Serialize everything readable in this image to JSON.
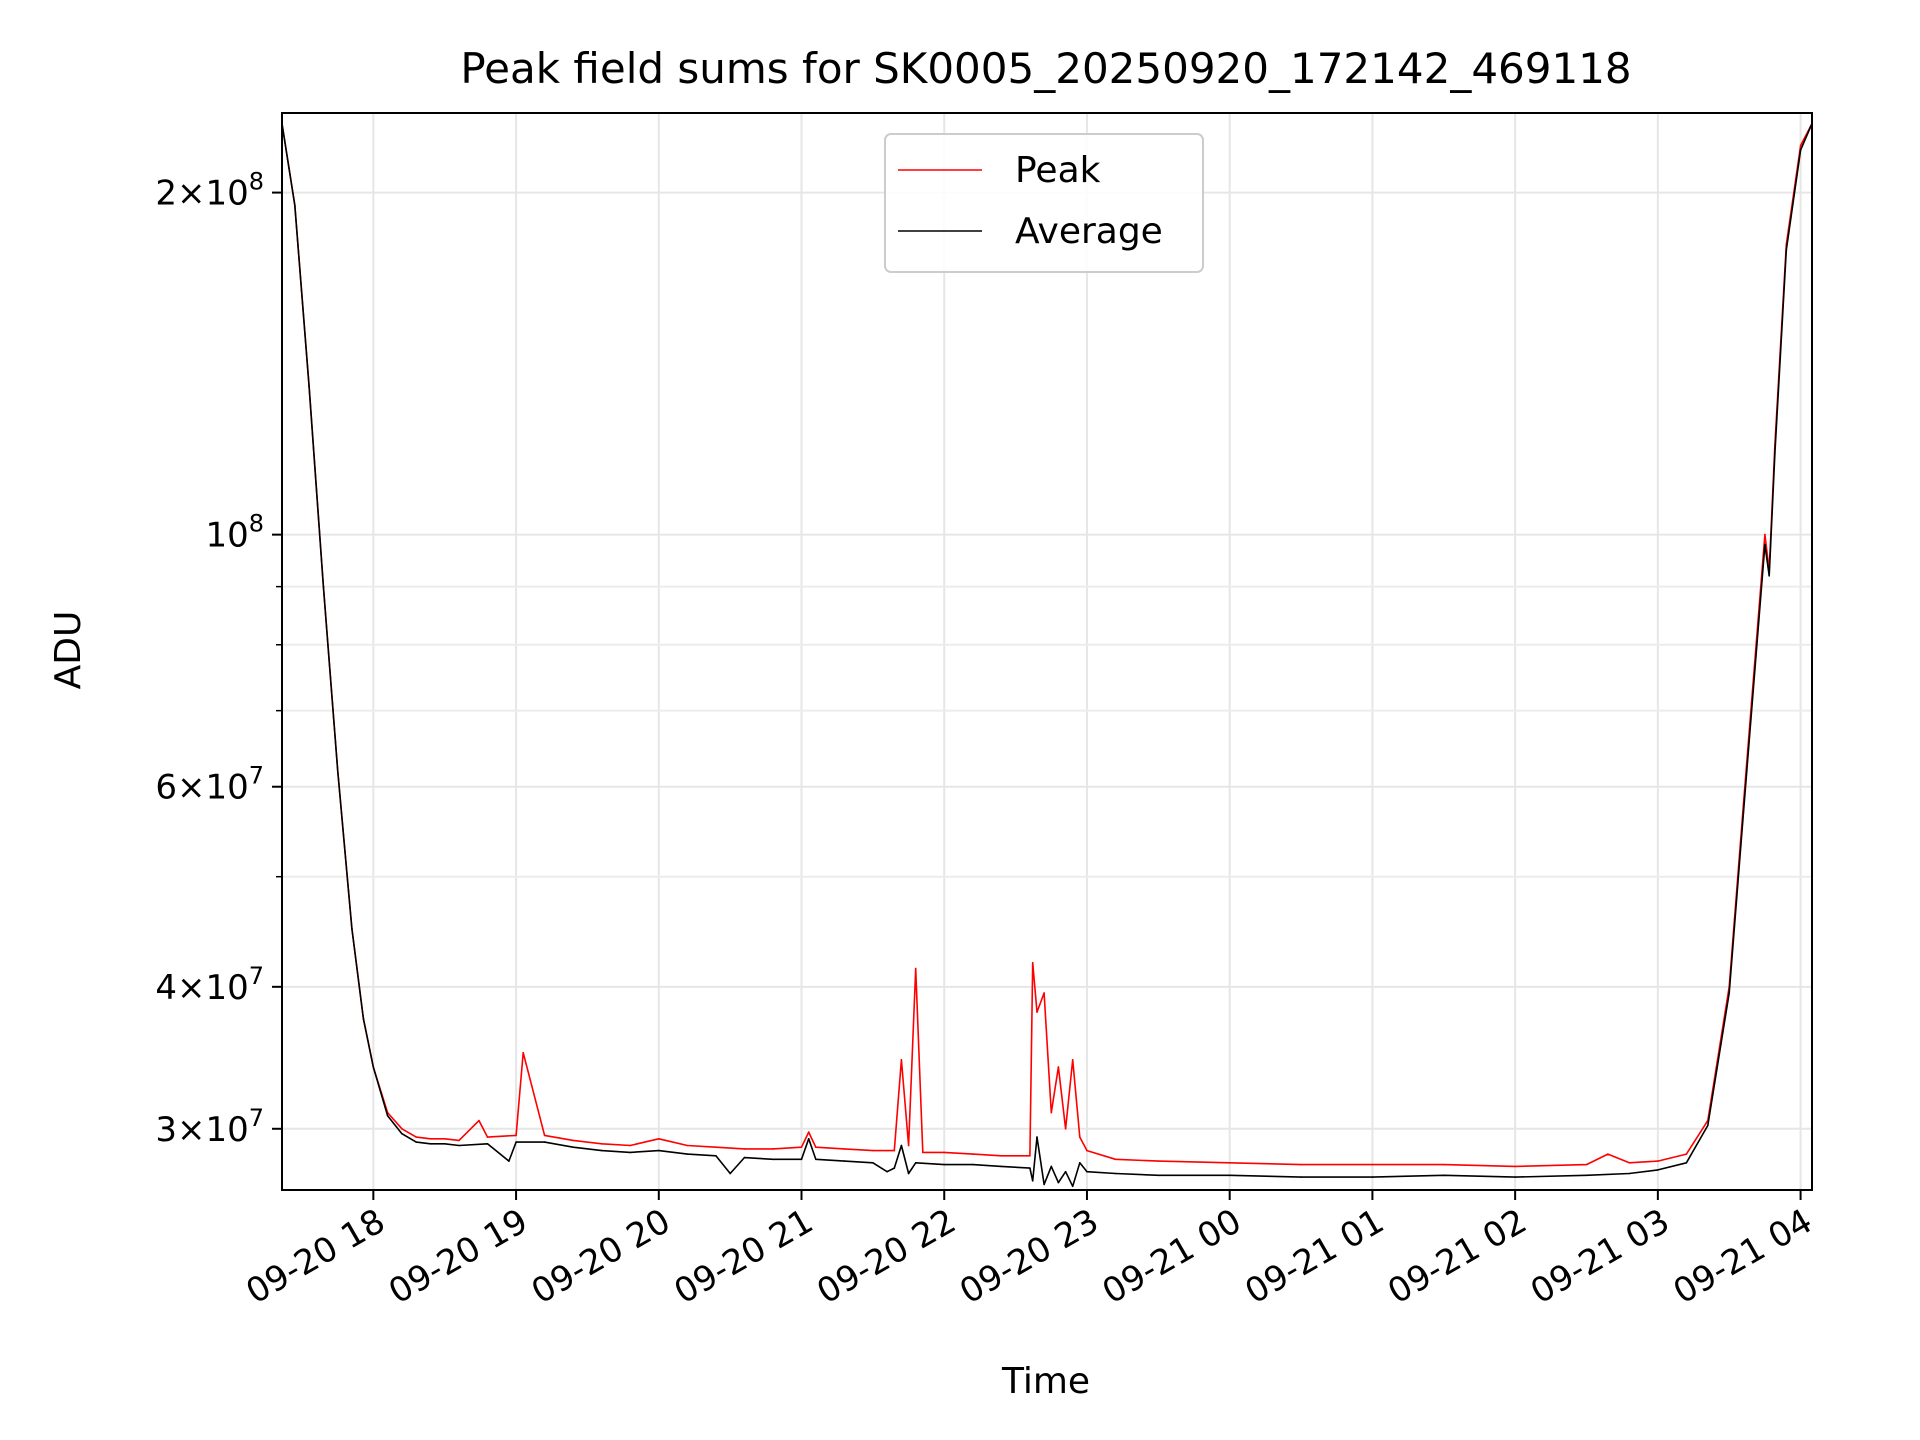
{
  "chart_data": {
    "type": "line",
    "title": "Peak field sums for SK0005_20250920_172142_469118",
    "xlabel": "Time",
    "ylabel": "ADU",
    "yscale": "log",
    "ylim": [
      26500000,
      235000000
    ],
    "xlim_hours": [
      17.36,
      28.08
    ],
    "grid": true,
    "legend_position": "upper center",
    "x_ticks": [
      {
        "hour": 18,
        "label": "09-20 18"
      },
      {
        "hour": 19,
        "label": "09-20 19"
      },
      {
        "hour": 20,
        "label": "09-20 20"
      },
      {
        "hour": 21,
        "label": "09-20 21"
      },
      {
        "hour": 22,
        "label": "09-20 22"
      },
      {
        "hour": 23,
        "label": "09-20 23"
      },
      {
        "hour": 24,
        "label": "09-21 00"
      },
      {
        "hour": 25,
        "label": "09-21 01"
      },
      {
        "hour": 26,
        "label": "09-21 02"
      },
      {
        "hour": 27,
        "label": "09-21 03"
      },
      {
        "hour": 28,
        "label": "09-21 04"
      }
    ],
    "y_ticks": [
      {
        "value": 30000000,
        "mantissa": "3",
        "exp": "7"
      },
      {
        "value": 40000000,
        "mantissa": "4",
        "exp": "7"
      },
      {
        "value": 60000000,
        "mantissa": "6",
        "exp": "7"
      },
      {
        "value": 100000000,
        "mantissa": "",
        "exp": "8"
      },
      {
        "value": 200000000,
        "mantissa": "2",
        "exp": "8"
      }
    ],
    "y_minor_ticks": [
      50000000,
      70000000,
      80000000,
      90000000
    ],
    "series": [
      {
        "name": "Peak",
        "color": "#ff0000",
        "x_hours": [
          17.36,
          17.45,
          17.55,
          17.65,
          17.75,
          17.85,
          17.93,
          18.0,
          18.1,
          18.2,
          18.3,
          18.4,
          18.5,
          18.6,
          18.74,
          18.8,
          19.0,
          19.05,
          19.2,
          19.4,
          19.6,
          19.8,
          20.0,
          20.2,
          20.4,
          20.6,
          20.8,
          21.0,
          21.05,
          21.1,
          21.3,
          21.5,
          21.65,
          21.7,
          21.75,
          21.8,
          21.85,
          22.0,
          22.2,
          22.4,
          22.6,
          22.62,
          22.65,
          22.7,
          22.75,
          22.8,
          22.85,
          22.9,
          22.95,
          23.0,
          23.2,
          23.5,
          24.0,
          24.5,
          25.0,
          25.5,
          26.0,
          26.5,
          26.65,
          26.8,
          27.0,
          27.2,
          27.35,
          27.5,
          27.6,
          27.75,
          27.78,
          27.82,
          27.9,
          28.0,
          28.08
        ],
        "y": [
          230000000,
          195000000,
          135000000,
          90000000,
          62000000,
          45000000,
          37500000,
          34000000,
          31000000,
          30000000,
          29500000,
          29400000,
          29400000,
          29300000,
          30500000,
          29500000,
          29600000,
          35000000,
          29600000,
          29300000,
          29100000,
          29000000,
          29400000,
          29000000,
          28900000,
          28800000,
          28800000,
          28900000,
          29800000,
          28900000,
          28800000,
          28700000,
          28700000,
          34500000,
          29000000,
          41500000,
          28600000,
          28600000,
          28500000,
          28400000,
          28400000,
          42000000,
          38000000,
          39500000,
          31000000,
          34000000,
          30000000,
          34500000,
          29500000,
          28700000,
          28200000,
          28100000,
          28000000,
          27900000,
          27900000,
          27900000,
          27800000,
          27900000,
          28500000,
          28000000,
          28100000,
          28500000,
          30500000,
          40000000,
          58000000,
          100000000,
          93000000,
          120000000,
          180000000,
          220000000,
          230000000
        ]
      },
      {
        "name": "Average",
        "color": "#000000",
        "x_hours": [
          17.36,
          17.45,
          17.55,
          17.65,
          17.75,
          17.85,
          17.93,
          18.0,
          18.1,
          18.2,
          18.3,
          18.4,
          18.5,
          18.6,
          18.8,
          18.95,
          19.0,
          19.2,
          19.4,
          19.6,
          19.8,
          20.0,
          20.2,
          20.4,
          20.5,
          20.6,
          20.8,
          21.0,
          21.05,
          21.1,
          21.3,
          21.5,
          21.6,
          21.65,
          21.7,
          21.75,
          21.8,
          22.0,
          22.2,
          22.4,
          22.6,
          22.62,
          22.65,
          22.7,
          22.75,
          22.8,
          22.85,
          22.9,
          22.95,
          23.0,
          23.2,
          23.5,
          24.0,
          24.5,
          25.0,
          25.5,
          26.0,
          26.5,
          26.8,
          27.0,
          27.2,
          27.35,
          27.5,
          27.6,
          27.75,
          27.78,
          27.82,
          27.9,
          28.0,
          28.08
        ],
        "y": [
          230000000,
          195000000,
          135000000,
          90000000,
          62000000,
          45000000,
          37500000,
          34000000,
          30800000,
          29700000,
          29200000,
          29100000,
          29100000,
          29000000,
          29100000,
          28100000,
          29200000,
          29200000,
          28900000,
          28700000,
          28600000,
          28700000,
          28500000,
          28400000,
          27400000,
          28300000,
          28200000,
          28200000,
          29400000,
          28200000,
          28100000,
          28000000,
          27500000,
          27700000,
          29000000,
          27400000,
          28000000,
          27900000,
          27900000,
          27800000,
          27700000,
          27000000,
          29500000,
          26800000,
          27800000,
          26900000,
          27500000,
          26700000,
          28000000,
          27500000,
          27400000,
          27300000,
          27300000,
          27200000,
          27200000,
          27300000,
          27200000,
          27300000,
          27400000,
          27600000,
          28000000,
          30200000,
          39500000,
          57000000,
          98000000,
          92000000,
          118000000,
          178000000,
          218000000,
          230000000
        ]
      }
    ]
  }
}
